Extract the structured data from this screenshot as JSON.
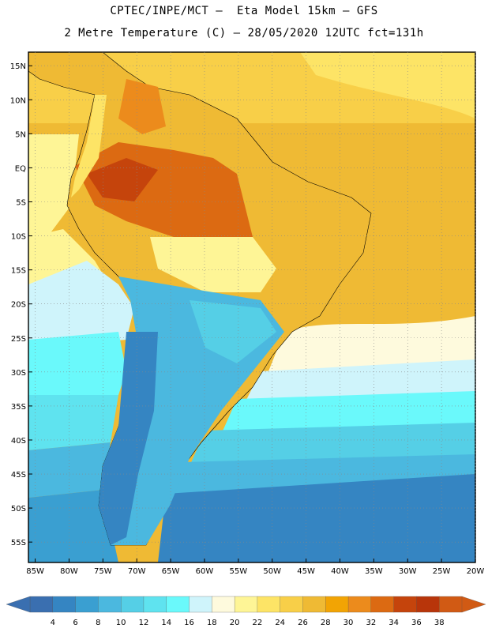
{
  "titles": {
    "line1": "CPTEC/INPE/MCT –  Eta Model 15km – GFS",
    "line2": "2 Metre Temperature (C) – 28/05/2020 12UTC fct=131h"
  },
  "map": {
    "variable": "2 Metre Temperature",
    "units": "C",
    "region": "South America",
    "lat_range": [
      -58,
      17
    ],
    "lon_range": [
      -86,
      -20
    ],
    "lat_ticks": [
      "15N",
      "10N",
      "5N",
      "EQ",
      "5S",
      "10S",
      "15S",
      "20S",
      "25S",
      "30S",
      "35S",
      "40S",
      "45S",
      "50S",
      "55S"
    ],
    "lat_values": [
      15,
      10,
      5,
      0,
      -5,
      -10,
      -15,
      -20,
      -25,
      -30,
      -35,
      -40,
      -45,
      -50,
      -55
    ],
    "lon_ticks": [
      "85W",
      "80W",
      "75W",
      "70W",
      "65W",
      "60W",
      "55W",
      "50W",
      "45W",
      "40W",
      "35W",
      "30W",
      "25W",
      "20W"
    ],
    "lon_values": [
      -85,
      -80,
      -75,
      -70,
      -65,
      -60,
      -55,
      -50,
      -45,
      -40,
      -35,
      -30,
      -25,
      -20
    ],
    "grid": "dotted"
  },
  "colorbar": {
    "levels": [
      "4",
      "6",
      "8",
      "10",
      "12",
      "14",
      "16",
      "18",
      "20",
      "22",
      "24",
      "26",
      "28",
      "30",
      "32",
      "34",
      "36",
      "38"
    ],
    "colors": [
      "#3a6fb0",
      "#3585c2",
      "#3a9fd1",
      "#4bb8df",
      "#55cfe6",
      "#5fe3ef",
      "#6af9fb",
      "#cff4fb",
      "#fefadd",
      "#fef596",
      "#fde466",
      "#f8cf48",
      "#efba34",
      "#f2a404",
      "#ec8b1c",
      "#dc6a12",
      "#c5440c",
      "#b8350a",
      "#d15a14"
    ]
  }
}
